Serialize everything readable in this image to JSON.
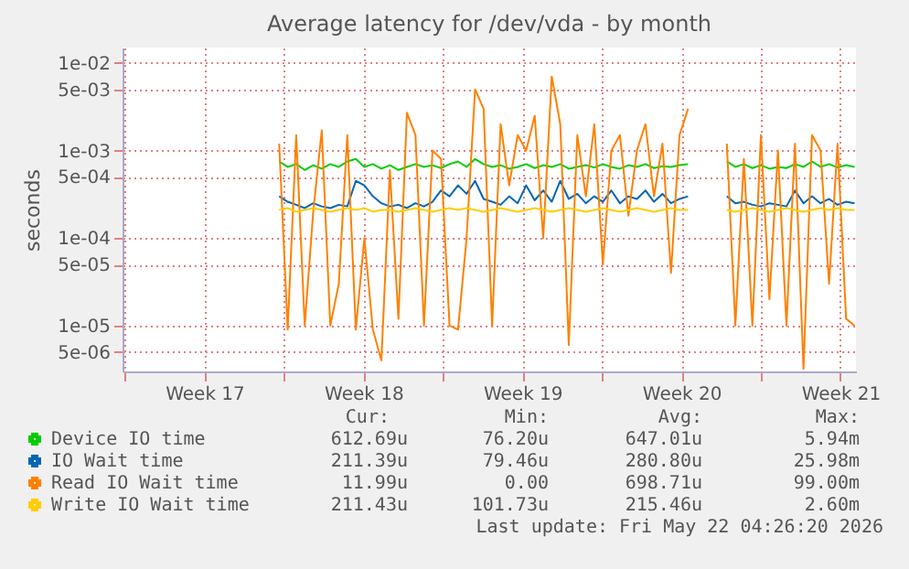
{
  "chart_data": {
    "type": "line",
    "title": "Average latency for /dev/vda - by month",
    "ylabel": "seconds",
    "log": true,
    "grid": true,
    "legend": "bottom left",
    "line_style": "solid",
    "marker": "none",
    "x": [
      "2026-04-26T19:00",
      "2026-04-27T04:00",
      "2026-04-27T13:00",
      "2026-04-27T22:00",
      "2026-04-28T07:00",
      "2026-04-28T16:00",
      "2026-04-29T01:00",
      "2026-04-29T10:00",
      "2026-04-29T19:00",
      "2026-04-30T04:00",
      "2026-04-30T13:00",
      "2026-04-30T22:00",
      "2026-05-01T07:00",
      "2026-05-01T16:00",
      "2026-05-02T01:00",
      "2026-05-02T10:00",
      "2026-05-02T19:00",
      "2026-05-03T04:00",
      "2026-05-03T13:00",
      "2026-05-03T22:00",
      "2026-05-04T07:00",
      "2026-05-04T16:00",
      "2026-05-05T01:00",
      "2026-05-05T10:00",
      "2026-05-05T19:00",
      "2026-05-06T04:00",
      "2026-05-06T13:00",
      "2026-05-06T22:00",
      "2026-05-07T07:00",
      "2026-05-07T16:00",
      "2026-05-08T01:00",
      "2026-05-08T10:00",
      "2026-05-08T19:00",
      "2026-05-09T04:00",
      "2026-05-09T13:00",
      "2026-05-09T22:00",
      "2026-05-10T07:00",
      "2026-05-10T16:00",
      "2026-05-11T01:00",
      "2026-05-11T10:00",
      "2026-05-11T19:00",
      "2026-05-12T04:00",
      "2026-05-12T13:00",
      "2026-05-12T22:00",
      "2026-05-13T07:00",
      "2026-05-13T16:00",
      "2026-05-14T01:00",
      "2026-05-14T10:00",
      "2026-05-14T19:00",
      "2026-05-15T16:00",
      "2026-05-16T12:00",
      "2026-05-16T21:00",
      "2026-05-17T06:00",
      "2026-05-17T15:00",
      "2026-05-18T00:00",
      "2026-05-18T09:00",
      "2026-05-18T18:00",
      "2026-05-19T03:00",
      "2026-05-19T12:00",
      "2026-05-19T21:00",
      "2026-05-20T06:00",
      "2026-05-20T15:00",
      "2026-05-21T00:00",
      "2026-05-21T09:00",
      "2026-05-21T18:00",
      "2026-05-22T03:00"
    ],
    "series": [
      {
        "name": "Device IO time",
        "color": "#00cc00",
        "values": [
          0.00075,
          0.00065,
          0.0007,
          0.0006,
          0.00068,
          0.00062,
          0.0007,
          0.00065,
          0.00075,
          0.0008,
          0.00065,
          0.0007,
          0.00062,
          0.00068,
          0.0006,
          0.00065,
          0.0007,
          0.00065,
          0.00068,
          0.00063,
          0.0007,
          0.00075,
          0.00065,
          0.0008,
          0.0007,
          0.00065,
          0.00068,
          0.00062,
          0.00065,
          0.0007,
          0.00063,
          0.00068,
          0.00065,
          0.0007,
          0.00062,
          0.00065,
          0.00068,
          0.00064,
          0.0007,
          0.00065,
          0.00062,
          0.00068,
          0.00065,
          0.0007,
          0.00063,
          0.00066,
          0.00065,
          0.00068,
          0.0007,
          null,
          0.00075,
          0.00065,
          0.0007,
          0.00063,
          0.00068,
          0.00062,
          0.00065,
          0.00063,
          0.0007,
          0.00065,
          0.00075,
          0.00065,
          0.0007,
          0.00064,
          0.00068,
          0.00065
        ]
      },
      {
        "name": "IO Wait time",
        "color": "#0066b3",
        "values": [
          0.0003,
          0.00026,
          0.00024,
          0.00022,
          0.00025,
          0.00023,
          0.00022,
          0.00024,
          0.00023,
          0.00045,
          0.0004,
          0.0003,
          0.00025,
          0.00023,
          0.00024,
          0.00022,
          0.00025,
          0.00023,
          0.00026,
          0.00035,
          0.0003,
          0.0004,
          0.00032,
          0.00045,
          0.00028,
          0.00026,
          0.00024,
          0.0003,
          0.00025,
          0.0004,
          0.00027,
          0.00035,
          0.00026,
          0.00045,
          0.00028,
          0.00032,
          0.00025,
          0.0003,
          0.00026,
          0.00035,
          0.00025,
          0.0003,
          0.00028,
          0.00035,
          0.00026,
          0.00032,
          0.00025,
          0.00028,
          0.0003,
          null,
          0.0003,
          0.00025,
          0.00026,
          0.00024,
          0.00023,
          0.00025,
          0.00024,
          0.00023,
          0.00035,
          0.00025,
          0.0003,
          0.00025,
          0.00028,
          0.00024,
          0.00026,
          0.00025
        ]
      },
      {
        "name": "Read IO Wait time",
        "color": "#ff8000",
        "values": [
          0.0012,
          9e-06,
          0.0015,
          1e-05,
          0.0002,
          0.0017,
          1e-05,
          3e-05,
          0.0015,
          9e-06,
          0.0001,
          9e-06,
          4e-06,
          0.0006,
          1.2e-05,
          0.0027,
          0.0015,
          1e-05,
          0.001,
          0.0008,
          1e-05,
          9e-06,
          0.0001,
          0.005,
          0.003,
          1e-05,
          0.002,
          0.0004,
          0.0015,
          0.001,
          0.0025,
          0.0001,
          0.007,
          0.002,
          6e-06,
          0.0015,
          0.0003,
          0.002,
          5e-05,
          0.001,
          0.0015,
          0.00018,
          0.001,
          0.002,
          0.0003,
          0.0012,
          4e-05,
          0.0015,
          0.003,
          null,
          0.0012,
          1e-05,
          0.0008,
          1e-05,
          0.0015,
          2e-05,
          0.001,
          1e-05,
          0.0012,
          3.2e-06,
          0.0015,
          0.001,
          3e-05,
          0.0012,
          1.2e-05,
          1e-05
        ]
      },
      {
        "name": "Write IO Wait time",
        "color": "#ffcc00",
        "values": [
          0.00021,
          0.00022,
          0.0002,
          0.00021,
          0.00022,
          0.00021,
          0.0002,
          0.00021,
          0.00022,
          0.00021,
          0.00022,
          0.0002,
          0.00021,
          0.00021,
          0.0002,
          0.00021,
          0.00022,
          0.00021,
          0.0002,
          0.00021,
          0.00022,
          0.00021,
          0.00022,
          0.00021,
          0.0002,
          0.00021,
          0.00022,
          0.00021,
          0.0002,
          0.00021,
          0.00022,
          0.00021,
          0.0002,
          0.00021,
          0.00022,
          0.00021,
          0.0002,
          0.00021,
          0.00022,
          0.00021,
          0.0002,
          0.00021,
          0.00022,
          0.00021,
          0.0002,
          0.00021,
          0.00022,
          0.00021,
          0.00021,
          null,
          0.00021,
          0.0002,
          0.00021,
          0.00022,
          0.00021,
          0.0002,
          0.00021,
          0.00022,
          0.00021,
          0.0002,
          0.00021,
          0.00022,
          0.00021,
          0.00022,
          0.00021,
          0.00021
        ]
      }
    ],
    "xlim": [
      "2026-04-19T21:30",
      "2026-05-22T04:26"
    ],
    "xticks": [
      {
        "value": "2026-04-20",
        "label": null
      },
      {
        "value": "2026-04-23T12:00",
        "label": "Week 17"
      },
      {
        "value": "2026-04-27",
        "label": null
      },
      {
        "value": "2026-04-30T12:00",
        "label": "Week 18"
      },
      {
        "value": "2026-05-04",
        "label": null
      },
      {
        "value": "2026-05-07T12:00",
        "label": "Week 19"
      },
      {
        "value": "2026-05-11",
        "label": null
      },
      {
        "value": "2026-05-14T12:00",
        "label": "Week 20"
      },
      {
        "value": "2026-05-18",
        "label": null
      },
      {
        "value": "2026-05-21T12:00",
        "label": "Week 21"
      }
    ],
    "ylim": [
      3e-06,
      0.015
    ],
    "yticks": [
      {
        "value": 0.01,
        "label": "1e-02"
      },
      {
        "value": 0.005,
        "label": "5e-03"
      },
      {
        "value": 0.001,
        "label": "1e-03"
      },
      {
        "value": 0.0005,
        "label": "5e-04"
      },
      {
        "value": 0.0001,
        "label": "1e-04"
      },
      {
        "value": 5e-05,
        "label": "5e-05"
      },
      {
        "value": 1e-05,
        "label": "1e-05"
      },
      {
        "value": 5e-06,
        "label": "5e-06"
      }
    ],
    "annotations": [
      "Cur:",
      "Min:",
      "Avg:",
      "Max:",
      "612.69u",
      "76.20u",
      "647.01u",
      "5.94m",
      "211.39u",
      "79.46u",
      "280.80u",
      "25.98m",
      "11.99u",
      "0.00",
      "698.71u",
      "99.00m",
      "211.43u",
      "101.73u",
      "215.46u",
      "2.60m",
      "Last update: Fri May 22 04:26:20 2026"
    ]
  }
}
